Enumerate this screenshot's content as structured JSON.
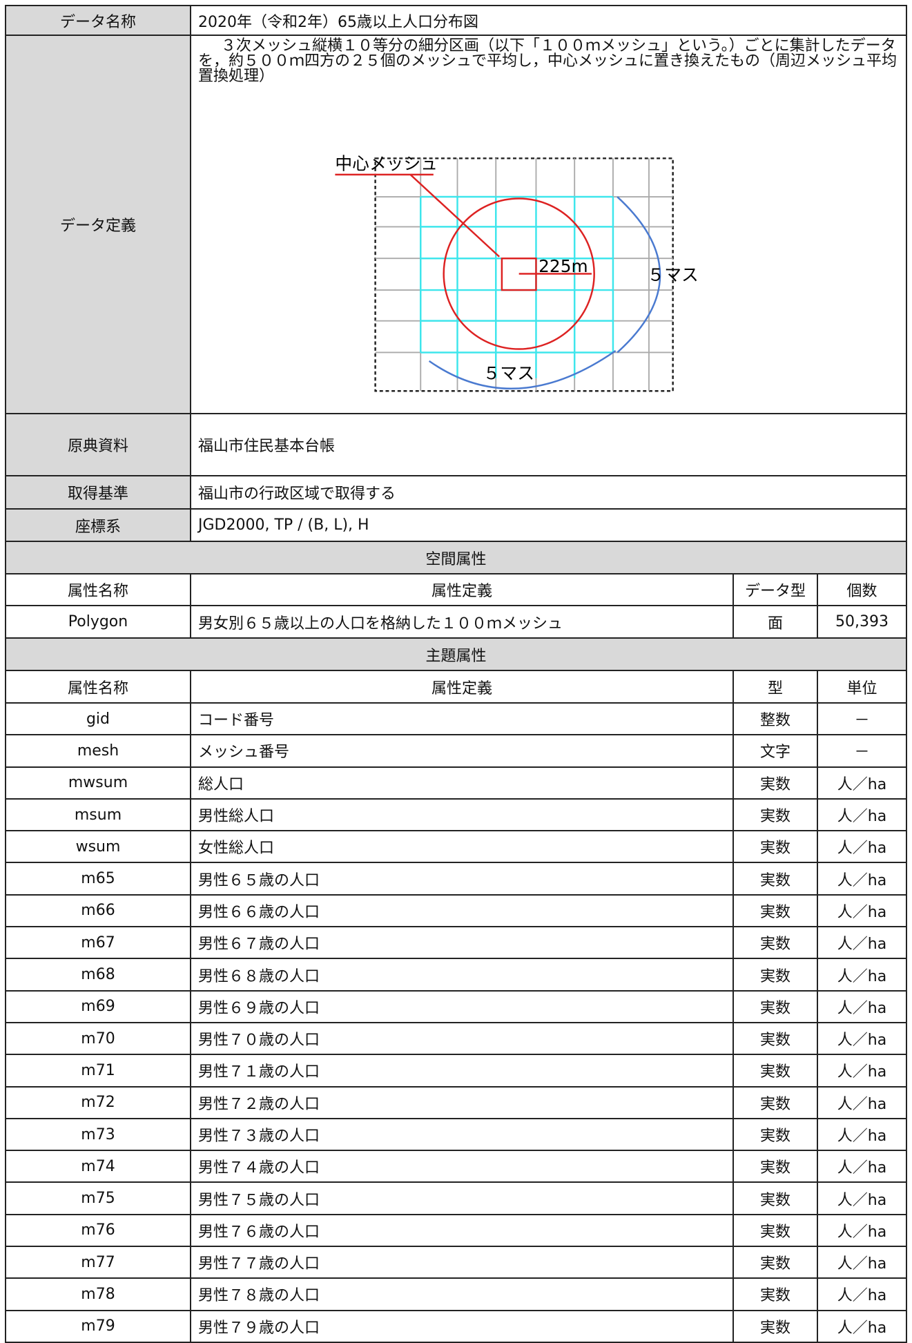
{
  "info": [
    {
      "label": "データ名称",
      "value": "2020年（令和2年）65歳以上人口分布図"
    },
    {
      "label": "データ定義",
      "value": "３次メッシュ縦横１０等分の細分区画（以下「１００ｍメッシュ」という。）ごとに集計したデータを，約５００ｍ四方の２５個のメッシュで平均し，中心メッシュに置き換えたもの（周辺メッシュ平均置換処理）",
      "diagram": {
        "center_label": "中心メッシュ",
        "distance": "225m",
        "cells_right": "５マス",
        "cells_bottom": "５マス"
      }
    },
    {
      "label": "原典資料",
      "value": "福山市住民基本台帳"
    },
    {
      "label": "取得基準",
      "value": "福山市の行政区域で取得する"
    },
    {
      "label": "座標系",
      "value": "JGD2000, TP / (B, L), H"
    }
  ],
  "spatial": {
    "title": "空間属性",
    "header": [
      "属性名称",
      "属性定義",
      "データ型",
      "個数"
    ],
    "rows": [
      [
        "Polygon",
        "男女別６５歳以上の人口を格納した１００ｍメッシュ",
        "面",
        "50,393"
      ]
    ]
  },
  "theme": {
    "title": "主題属性",
    "header": [
      "属性名称",
      "属性定義",
      "型",
      "単位"
    ],
    "rows": [
      [
        "gid",
        "コード番号",
        "整数",
        "－"
      ],
      [
        "mesh",
        "メッシュ番号",
        "文字",
        "－"
      ],
      [
        "mwsum",
        "総人口",
        "実数",
        "人／ha"
      ],
      [
        "msum",
        "男性総人口",
        "実数",
        "人／ha"
      ],
      [
        "wsum",
        "女性総人口",
        "実数",
        "人／ha"
      ],
      [
        "m65",
        "男性６５歳の人口",
        "実数",
        "人／ha"
      ],
      [
        "m66",
        "男性６６歳の人口",
        "実数",
        "人／ha"
      ],
      [
        "m67",
        "男性６７歳の人口",
        "実数",
        "人／ha"
      ],
      [
        "m68",
        "男性６８歳の人口",
        "実数",
        "人／ha"
      ],
      [
        "m69",
        "男性６９歳の人口",
        "実数",
        "人／ha"
      ],
      [
        "m70",
        "男性７０歳の人口",
        "実数",
        "人／ha"
      ],
      [
        "m71",
        "男性７１歳の人口",
        "実数",
        "人／ha"
      ],
      [
        "m72",
        "男性７２歳の人口",
        "実数",
        "人／ha"
      ],
      [
        "m73",
        "男性７３歳の人口",
        "実数",
        "人／ha"
      ],
      [
        "m74",
        "男性７４歳の人口",
        "実数",
        "人／ha"
      ],
      [
        "m75",
        "男性７５歳の人口",
        "実数",
        "人／ha"
      ],
      [
        "m76",
        "男性７６歳の人口",
        "実数",
        "人／ha"
      ],
      [
        "m77",
        "男性７７歳の人口",
        "実数",
        "人／ha"
      ],
      [
        "m78",
        "男性７８歳の人口",
        "実数",
        "人／ha"
      ],
      [
        "m79",
        "男性７９歳の人口",
        "実数",
        "人／ha"
      ]
    ]
  }
}
